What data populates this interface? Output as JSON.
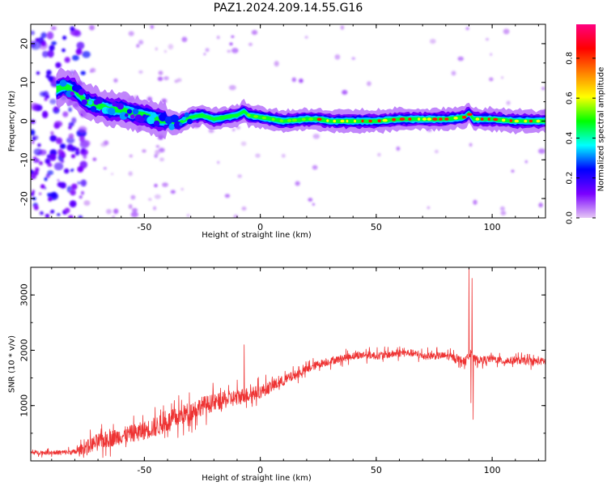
{
  "title": "PAZ1.2024.209.14.55.G16",
  "chart_data": [
    {
      "type": "heatmap",
      "title": "PAZ1.2024.209.14.55.G16",
      "xlabel": "Height of straight line (km)",
      "ylabel": "Frequency (Hz)",
      "xlim": [
        -99,
        123
      ],
      "ylim": [
        -25,
        25
      ],
      "x_ticks": [
        -50,
        0,
        50,
        100
      ],
      "x_tick_labels": [
        "-50",
        "0",
        "50",
        "100"
      ],
      "y_ticks": [
        -20,
        -10,
        0,
        10,
        20
      ],
      "y_tick_labels": [
        "-20",
        "-10",
        "0",
        "10",
        "20"
      ],
      "colorbar": {
        "label": "Normalized spectral amplitude",
        "range": [
          0,
          1
        ],
        "ticks": [
          0,
          0.2,
          0.4,
          0.6,
          0.8
        ],
        "tick_labels": [
          "0.0",
          "0.2",
          "0.4",
          "0.6",
          "0.8"
        ],
        "colormap": [
          "#e6c8f5",
          "#7a00ff",
          "#0000ff",
          "#00ffff",
          "#00ff00",
          "#ffff00",
          "#ff8000",
          "#ff0000",
          "#ff0080"
        ]
      },
      "ridge": {
        "description_points_x": [
          -99,
          -85,
          -80,
          -75,
          -70,
          -65,
          -60,
          -55,
          -50,
          -45,
          -40,
          -35,
          -30,
          -25,
          -20,
          -15,
          -10,
          -7,
          -5,
          0,
          5,
          10,
          20,
          25,
          30,
          40,
          50,
          60,
          70,
          80,
          88,
          90,
          92,
          100,
          110,
          123
        ],
        "freq_hz": [
          5,
          9,
          8,
          5,
          4,
          3,
          3,
          2,
          1.5,
          0.5,
          0,
          -0.5,
          1,
          1.5,
          0.5,
          1,
          1.5,
          2.5,
          1.5,
          1,
          0.5,
          0,
          0.5,
          0.5,
          0,
          0,
          0,
          0.5,
          0.5,
          0.5,
          1,
          2,
          0.5,
          0.5,
          0,
          0
        ]
      }
    },
    {
      "type": "line",
      "xlabel": "Height of straight line (km)",
      "ylabel": "SNR (10 * v/v)",
      "xlim": [
        -99,
        123
      ],
      "ylim": [
        0,
        3500
      ],
      "x_ticks": [
        -50,
        0,
        50,
        100
      ],
      "x_tick_labels": [
        "-50",
        "0",
        "50",
        "100"
      ],
      "y_ticks": [
        1000,
        2000,
        3000
      ],
      "y_tick_labels": [
        "1000",
        "2000",
        "3000"
      ],
      "color": "#ee3333",
      "x": [
        -99,
        -90,
        -80,
        -75,
        -70,
        -65,
        -60,
        -55,
        -50,
        -45,
        -40,
        -35,
        -30,
        -25,
        -20,
        -15,
        -10,
        -5,
        0,
        5,
        10,
        15,
        20,
        25,
        30,
        35,
        40,
        45,
        50,
        55,
        60,
        65,
        70,
        75,
        80,
        85,
        88,
        90,
        91,
        92,
        95,
        100,
        105,
        110,
        115,
        123
      ],
      "y": [
        150,
        150,
        160,
        250,
        350,
        400,
        450,
        500,
        550,
        620,
        700,
        800,
        900,
        1000,
        1050,
        1100,
        1150,
        1200,
        1250,
        1350,
        1450,
        1550,
        1650,
        1750,
        1800,
        1850,
        1900,
        1920,
        1900,
        1920,
        1950,
        1950,
        1900,
        1900,
        1900,
        1850,
        1800,
        1900,
        2000,
        1850,
        1820,
        1850,
        1800,
        1820,
        1800,
        1800
      ],
      "spread": [
        60,
        60,
        80,
        200,
        250,
        250,
        250,
        260,
        280,
        300,
        300,
        300,
        300,
        280,
        260,
        250,
        250,
        220,
        200,
        180,
        160,
        140,
        120,
        120,
        110,
        110,
        110,
        110,
        110,
        110,
        110,
        110,
        110,
        110,
        110,
        110,
        110,
        110,
        110,
        110,
        110,
        110,
        110,
        110,
        110,
        110
      ],
      "spikes": [
        {
          "x": -7,
          "y": 2100
        },
        {
          "x": 90,
          "y": 3500
        },
        {
          "x": 90.8,
          "y": 1050
        },
        {
          "x": 91.3,
          "y": 3300
        },
        {
          "x": 91.8,
          "y": 750
        }
      ]
    }
  ]
}
